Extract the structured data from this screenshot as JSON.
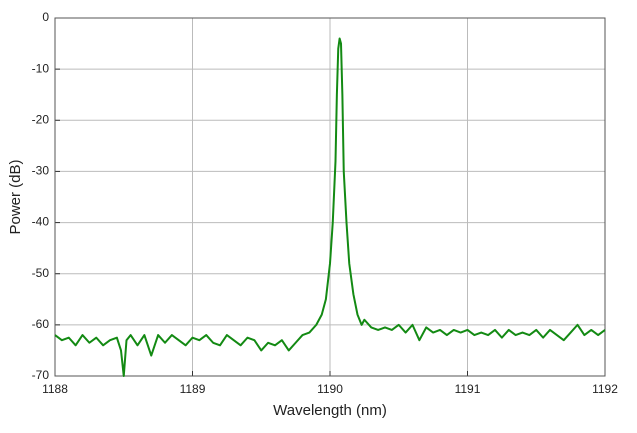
{
  "chart_data": {
    "type": "line",
    "x_label": "Wavelength (nm)",
    "y_label": "Power (dB)",
    "xlim": [
      1188,
      1192
    ],
    "xticks": [
      1188,
      1189,
      1190,
      1191,
      1192
    ],
    "ylim": [
      -70,
      0
    ],
    "yticks": [
      0,
      -10,
      -20,
      -30,
      -40,
      -50,
      -60,
      -70
    ],
    "grid": true,
    "series": [
      {
        "color": "#138a13",
        "x": [
          1188.0,
          1188.05,
          1188.1,
          1188.15,
          1188.2,
          1188.25,
          1188.3,
          1188.35,
          1188.4,
          1188.45,
          1188.48,
          1188.5,
          1188.52,
          1188.55,
          1188.6,
          1188.65,
          1188.7,
          1188.75,
          1188.8,
          1188.85,
          1188.9,
          1188.95,
          1189.0,
          1189.05,
          1189.1,
          1189.15,
          1189.2,
          1189.25,
          1189.3,
          1189.35,
          1189.4,
          1189.45,
          1189.5,
          1189.55,
          1189.6,
          1189.65,
          1189.7,
          1189.75,
          1189.8,
          1189.85,
          1189.9,
          1189.94,
          1189.97,
          1190.0,
          1190.02,
          1190.04,
          1190.05,
          1190.06,
          1190.07,
          1190.08,
          1190.09,
          1190.1,
          1190.12,
          1190.14,
          1190.17,
          1190.2,
          1190.23,
          1190.25,
          1190.3,
          1190.35,
          1190.4,
          1190.45,
          1190.5,
          1190.55,
          1190.6,
          1190.65,
          1190.7,
          1190.75,
          1190.8,
          1190.85,
          1190.9,
          1190.95,
          1191.0,
          1191.05,
          1191.1,
          1191.15,
          1191.2,
          1191.25,
          1191.3,
          1191.35,
          1191.4,
          1191.45,
          1191.5,
          1191.55,
          1191.6,
          1191.65,
          1191.7,
          1191.75,
          1191.8,
          1191.85,
          1191.9,
          1191.95,
          1192.0
        ],
        "values": [
          -62,
          -63,
          -62.5,
          -64,
          -62,
          -63.5,
          -62.5,
          -64,
          -63,
          -62.5,
          -65,
          -70,
          -63,
          -62,
          -64,
          -62,
          -66,
          -62,
          -63.5,
          -62,
          -63,
          -64,
          -62.5,
          -63,
          -62,
          -63.5,
          -64,
          -62,
          -63,
          -64,
          -62.5,
          -63,
          -65,
          -63.5,
          -64,
          -63,
          -65,
          -63.5,
          -62,
          -61.5,
          -60,
          -58,
          -55,
          -48,
          -40,
          -28,
          -15,
          -6,
          -4,
          -5,
          -15,
          -30,
          -40,
          -48,
          -54,
          -58,
          -60,
          -59,
          -60.5,
          -61,
          -60.5,
          -61,
          -60,
          -61.5,
          -60,
          -63,
          -60.5,
          -61.5,
          -61,
          -62,
          -61,
          -61.5,
          -61,
          -62,
          -61.5,
          -62,
          -61,
          -62.5,
          -61,
          -62,
          -61.5,
          -62,
          -61,
          -62.5,
          -61,
          -62,
          -63,
          -61.5,
          -60,
          -62,
          -61,
          -62,
          -61
        ]
      }
    ]
  }
}
